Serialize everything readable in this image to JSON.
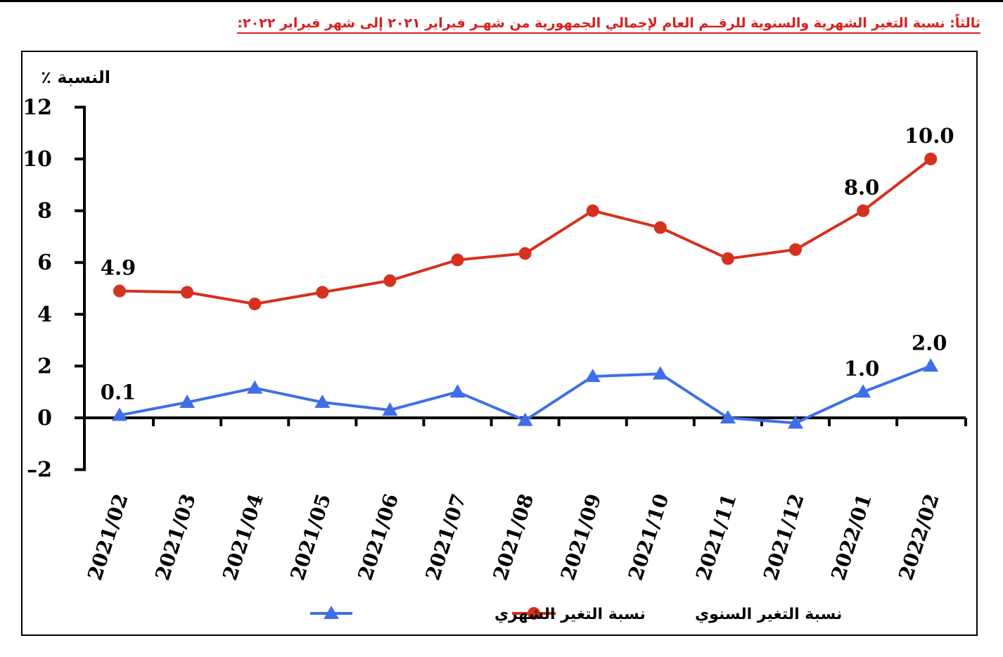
{
  "page": {
    "title": "ثالثاً: نسبة التغير الشهرية والسنوية للرقــم العام لإجمالي الجمهورية من شهـر فبراير ٢٠٢١ إلى شهر فبراير ٢٠٢٢:"
  },
  "chart_data": {
    "type": "line",
    "title": "",
    "ylabel": "النسبة ٪",
    "xlabel": "",
    "ylim": [
      -2,
      12
    ],
    "yticks": [
      -2,
      0,
      2,
      4,
      6,
      8,
      10,
      12
    ],
    "ytick_labels": [
      "–2",
      "0",
      "2",
      "4",
      "6",
      "8",
      "10",
      "12"
    ],
    "categories": [
      "2021/02",
      "2021/03",
      "2021/04",
      "2021/05",
      "2021/06",
      "2021/07",
      "2021/08",
      "2021/09",
      "2021/10",
      "2021/11",
      "2021/12",
      "2022/01",
      "2022/02"
    ],
    "grid": false,
    "legend_position": "bottom-center",
    "series": [
      {
        "name": "نسبة التغير السنوي",
        "color": "#d6301f",
        "marker": "circle",
        "values": [
          4.9,
          4.85,
          4.4,
          4.85,
          5.3,
          6.1,
          6.35,
          8.0,
          7.35,
          6.15,
          6.5,
          8.0,
          10.0
        ],
        "labels": {
          "0": "4.9",
          "11": "8.0",
          "12": "10.0"
        }
      },
      {
        "name": "نسبة التغير الشهري",
        "color": "#3f6fe6",
        "marker": "triangle",
        "values": [
          0.1,
          0.6,
          1.15,
          0.6,
          0.3,
          1.0,
          -0.1,
          1.6,
          1.7,
          0.0,
          -0.2,
          1.0,
          2.0
        ],
        "labels": {
          "0": "0.1",
          "11": "1.0",
          "12": "2.0"
        }
      }
    ]
  }
}
